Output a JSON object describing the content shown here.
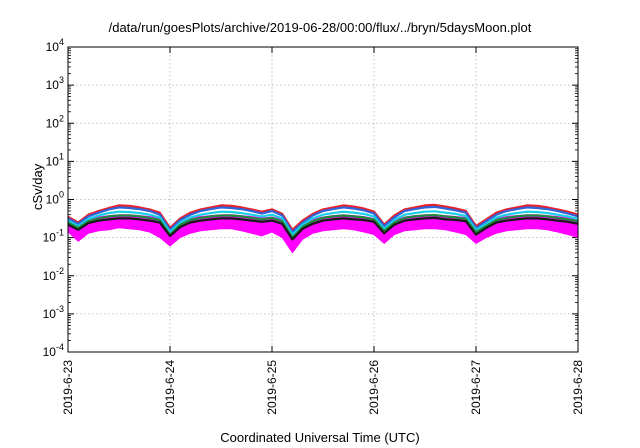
{
  "chart_data": {
    "type": "area",
    "title": "/data/run/goesPlots/archive/2019-06-28/00:00/flux/../bryn/5daysMoon.plot",
    "xlabel": "Coordinated Universal Time (UTC)",
    "ylabel": "cSv/day",
    "yscale": "log",
    "ylim": [
      0.0001,
      10000
    ],
    "yticks": [
      {
        "base": "10",
        "exp": "-4"
      },
      {
        "base": "10",
        "exp": "-3"
      },
      {
        "base": "10",
        "exp": "-2"
      },
      {
        "base": "10",
        "exp": "-1"
      },
      {
        "base": "10",
        "exp": "0"
      },
      {
        "base": "10",
        "exp": "1"
      },
      {
        "base": "10",
        "exp": "2"
      },
      {
        "base": "10",
        "exp": "3"
      },
      {
        "base": "10",
        "exp": "4"
      }
    ],
    "xticks": [
      "2019-6-23",
      "2019-6-24",
      "2019-6-25",
      "2019-6-26",
      "2019-6-27",
      "2019-6-28"
    ],
    "xlim": [
      "2019-06-23T00:00",
      "2019-06-28T00:00"
    ],
    "grid": true,
    "x_day": [
      0,
      0.1,
      0.2,
      0.3,
      0.4,
      0.5,
      0.6,
      0.7,
      0.8,
      0.9,
      1.0,
      1.1,
      1.2,
      1.3,
      1.4,
      1.5,
      1.6,
      1.7,
      1.8,
      1.9,
      2.0,
      2.1,
      2.2,
      2.3,
      2.4,
      2.5,
      2.6,
      2.7,
      2.8,
      2.9,
      3.0,
      3.1,
      3.2,
      3.3,
      3.4,
      3.5,
      3.6,
      3.7,
      3.8,
      3.9,
      4.0,
      4.1,
      4.2,
      4.3,
      4.4,
      4.5,
      4.6,
      4.7,
      4.8,
      4.9,
      5.0
    ],
    "series": [
      {
        "color": "#ff00ff",
        "fill": true,
        "upper": [
          0.3,
          0.22,
          0.32,
          0.35,
          0.38,
          0.4,
          0.4,
          0.38,
          0.36,
          0.33,
          0.15,
          0.25,
          0.33,
          0.36,
          0.38,
          0.4,
          0.4,
          0.38,
          0.36,
          0.33,
          0.35,
          0.3,
          0.13,
          0.22,
          0.3,
          0.35,
          0.38,
          0.4,
          0.38,
          0.36,
          0.32,
          0.18,
          0.28,
          0.35,
          0.38,
          0.4,
          0.4,
          0.38,
          0.36,
          0.34,
          0.16,
          0.24,
          0.32,
          0.36,
          0.38,
          0.4,
          0.4,
          0.38,
          0.36,
          0.33,
          0.3
        ],
        "lower": [
          0.14,
          0.08,
          0.13,
          0.15,
          0.16,
          0.18,
          0.17,
          0.16,
          0.14,
          0.1,
          0.06,
          0.1,
          0.13,
          0.15,
          0.16,
          0.17,
          0.17,
          0.15,
          0.13,
          0.11,
          0.14,
          0.1,
          0.04,
          0.09,
          0.13,
          0.15,
          0.16,
          0.17,
          0.16,
          0.14,
          0.12,
          0.07,
          0.12,
          0.15,
          0.16,
          0.17,
          0.17,
          0.16,
          0.14,
          0.12,
          0.07,
          0.1,
          0.13,
          0.15,
          0.16,
          0.17,
          0.17,
          0.16,
          0.14,
          0.12,
          0.1
        ]
      },
      {
        "color": "#e8202a",
        "values": [
          0.35,
          0.25,
          0.4,
          0.5,
          0.6,
          0.7,
          0.68,
          0.62,
          0.55,
          0.45,
          0.18,
          0.32,
          0.45,
          0.55,
          0.62,
          0.7,
          0.68,
          0.62,
          0.55,
          0.48,
          0.55,
          0.42,
          0.16,
          0.28,
          0.42,
          0.55,
          0.62,
          0.7,
          0.65,
          0.58,
          0.48,
          0.22,
          0.38,
          0.55,
          0.62,
          0.7,
          0.72,
          0.65,
          0.58,
          0.5,
          0.2,
          0.3,
          0.45,
          0.55,
          0.62,
          0.7,
          0.68,
          0.62,
          0.55,
          0.48,
          0.4
        ]
      },
      {
        "color": "#2f63d8",
        "values": [
          0.32,
          0.23,
          0.36,
          0.45,
          0.55,
          0.62,
          0.6,
          0.56,
          0.5,
          0.4,
          0.16,
          0.29,
          0.4,
          0.5,
          0.56,
          0.62,
          0.6,
          0.56,
          0.5,
          0.43,
          0.5,
          0.38,
          0.14,
          0.25,
          0.38,
          0.5,
          0.56,
          0.62,
          0.58,
          0.52,
          0.43,
          0.2,
          0.34,
          0.5,
          0.56,
          0.62,
          0.64,
          0.58,
          0.52,
          0.45,
          0.18,
          0.27,
          0.4,
          0.5,
          0.56,
          0.62,
          0.6,
          0.56,
          0.5,
          0.43,
          0.36
        ]
      },
      {
        "color": "#18d0e8",
        "values": [
          0.28,
          0.2,
          0.31,
          0.38,
          0.44,
          0.48,
          0.47,
          0.44,
          0.4,
          0.34,
          0.14,
          0.25,
          0.34,
          0.4,
          0.44,
          0.48,
          0.47,
          0.44,
          0.4,
          0.36,
          0.4,
          0.32,
          0.12,
          0.22,
          0.32,
          0.4,
          0.44,
          0.48,
          0.45,
          0.42,
          0.36,
          0.17,
          0.29,
          0.4,
          0.44,
          0.48,
          0.49,
          0.45,
          0.42,
          0.37,
          0.16,
          0.23,
          0.34,
          0.4,
          0.44,
          0.48,
          0.47,
          0.44,
          0.4,
          0.36,
          0.31
        ]
      },
      {
        "color": "#1e8a3c",
        "values": [
          0.25,
          0.18,
          0.27,
          0.32,
          0.36,
          0.38,
          0.38,
          0.36,
          0.33,
          0.29,
          0.12,
          0.22,
          0.29,
          0.33,
          0.36,
          0.38,
          0.38,
          0.36,
          0.33,
          0.3,
          0.33,
          0.27,
          0.1,
          0.19,
          0.27,
          0.33,
          0.36,
          0.38,
          0.36,
          0.34,
          0.3,
          0.15,
          0.25,
          0.33,
          0.36,
          0.38,
          0.39,
          0.36,
          0.34,
          0.31,
          0.14,
          0.2,
          0.29,
          0.33,
          0.36,
          0.38,
          0.38,
          0.36,
          0.33,
          0.3,
          0.27
        ]
      },
      {
        "color": "#1a1a1a",
        "values": [
          0.22,
          0.16,
          0.24,
          0.28,
          0.3,
          0.32,
          0.32,
          0.3,
          0.28,
          0.25,
          0.11,
          0.19,
          0.25,
          0.28,
          0.3,
          0.32,
          0.32,
          0.3,
          0.28,
          0.26,
          0.28,
          0.23,
          0.09,
          0.17,
          0.23,
          0.28,
          0.3,
          0.32,
          0.3,
          0.29,
          0.26,
          0.13,
          0.22,
          0.28,
          0.3,
          0.32,
          0.33,
          0.3,
          0.29,
          0.27,
          0.12,
          0.18,
          0.25,
          0.28,
          0.3,
          0.32,
          0.32,
          0.3,
          0.28,
          0.26,
          0.23
        ]
      }
    ]
  }
}
